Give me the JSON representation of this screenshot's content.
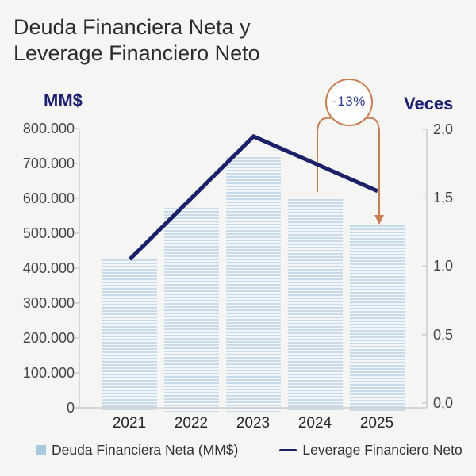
{
  "header": {
    "title_line1": "Deuda Financiera Neta y",
    "title_line2": "Leverage Financiero Neto"
  },
  "colors": {
    "background": "#f5f5f3",
    "navy_line": "#1a2168",
    "navy_label": "#1b1f70",
    "bar_stripe": "#c9dbe8",
    "bar_stripe_bg": "#f2f6f9",
    "legend_bar_swatch": "#a9cade",
    "annotation_orange": "#c87d52",
    "axis_line_gray": "#cbcbc9",
    "tick_text_gray": "#454547"
  },
  "chart_data": {
    "type": "bar",
    "categories": [
      "2021",
      "2022",
      "2023",
      "2024",
      "2025"
    ],
    "series": [
      {
        "name": "Deuda Financiera Neta (MM$)",
        "type": "bar",
        "axis": "left",
        "values": [
          425000,
          575000,
          720000,
          600000,
          525000
        ]
      },
      {
        "name": "Leverage Financiero Neto",
        "type": "line",
        "axis": "right",
        "values": [
          1.05,
          1.5,
          1.95,
          1.75,
          1.55
        ]
      }
    ],
    "title": "Deuda Financiera Neta y Leverage Financiero Neto",
    "yaxis_left": {
      "title": "MM$",
      "range": [
        0,
        800000
      ],
      "tick_labels": [
        "800.000",
        "700.000",
        "600.000",
        "500.000",
        "400.000",
        "300.000",
        "200.000",
        "100.000",
        "0"
      ]
    },
    "yaxis_right": {
      "title": "Veces",
      "range": [
        0,
        2.0
      ],
      "tick_labels": [
        "2,0",
        "1,5",
        "1,0",
        "0,5",
        "0,0"
      ]
    },
    "grid": false,
    "annotation": {
      "text": "-13%",
      "from_category": "2024",
      "to_category": "2025"
    },
    "legend": {
      "position": "bottom",
      "entries": [
        {
          "label": "Deuda Financiera Neta (MM$)",
          "swatch": "bar"
        },
        {
          "label": "Leverage Financiero Neto",
          "swatch": "line"
        }
      ]
    }
  }
}
